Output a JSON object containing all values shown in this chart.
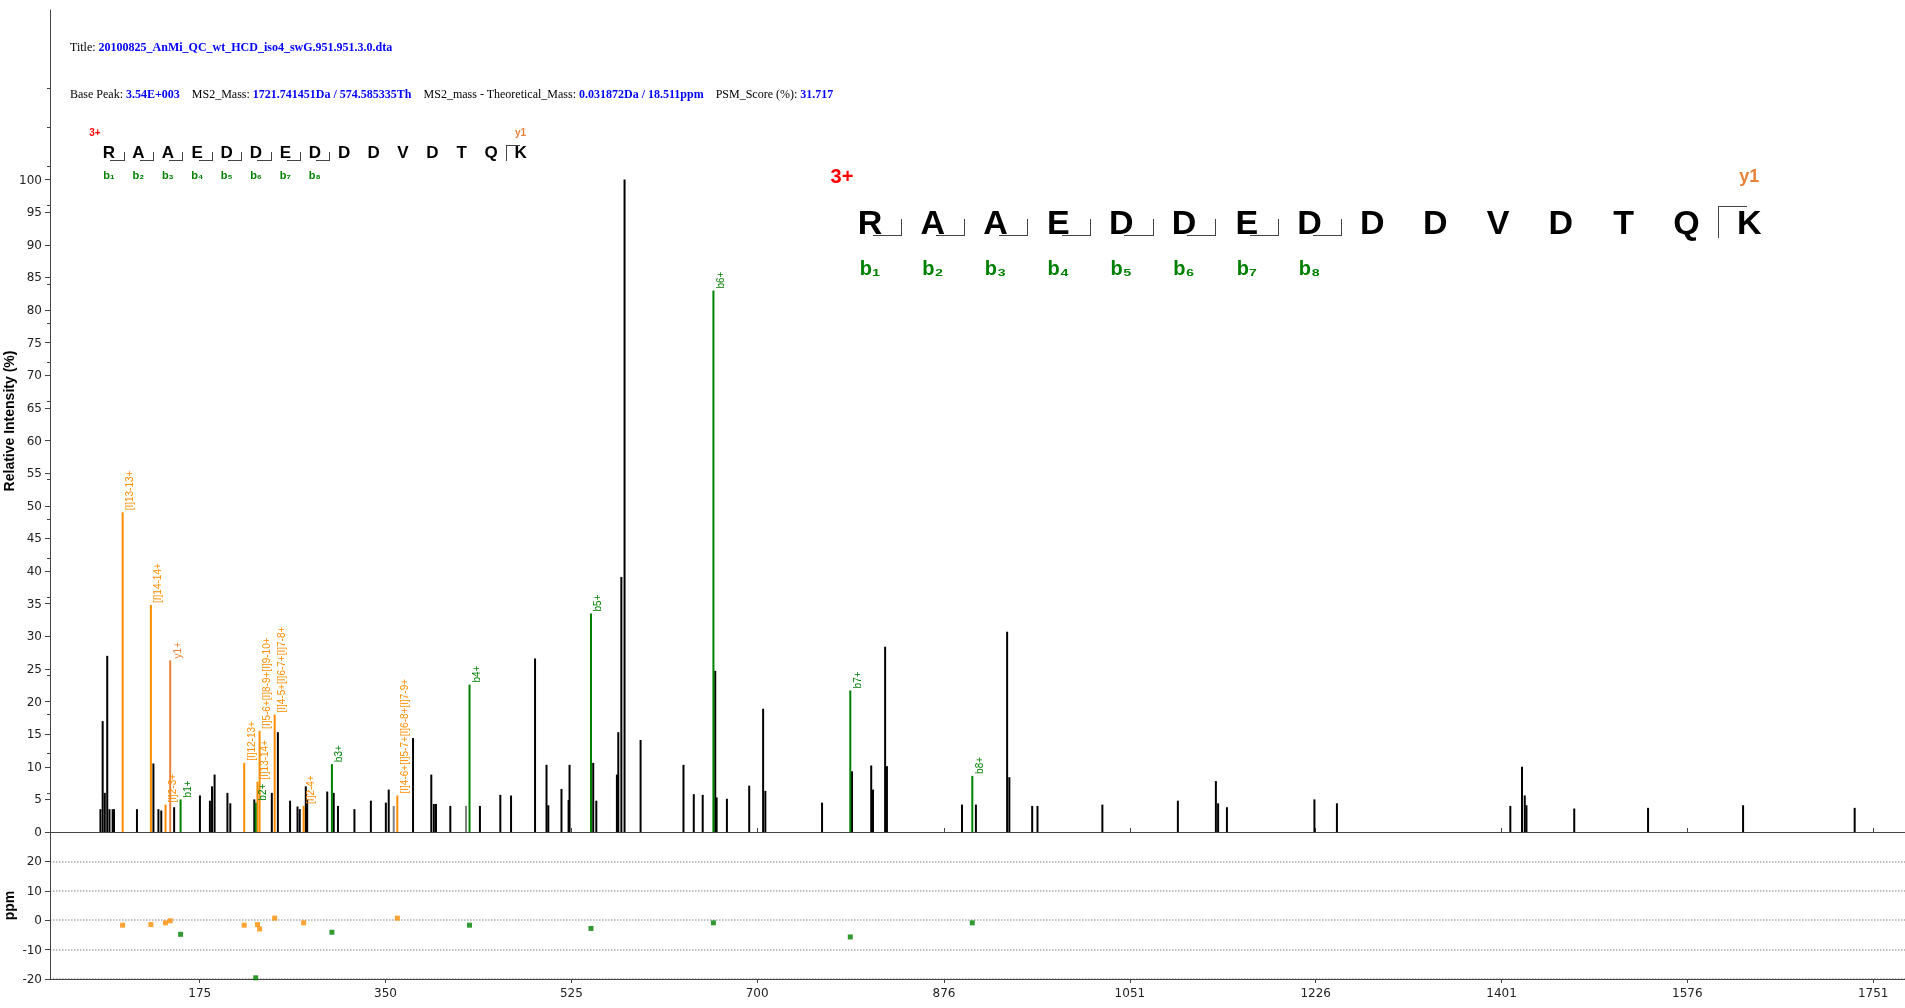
{
  "chart_data": [
    {
      "type": "bar",
      "title": "Title: 20100825_AnMi_QC_wt_HCD_iso4_swG.951.951.3.0.dta",
      "subtitle": "Base Peak: 3.54E+003    MS2_Mass: 1721.741451Da / 574.585335Th    MS2_mass - Theoretical_Mass: 0.031872Da / 18.511ppm    PSM_Score (%): 31.717",
      "ylabel": "Relative Intensity (%)",
      "annotations": [
        "3+",
        "R",
        "A",
        "A",
        "E",
        "D",
        "D",
        "E",
        "D",
        "D",
        "D",
        "V",
        "D",
        "T",
        "Q",
        "K",
        "b₁",
        "b₂",
        "b₃",
        "b₄",
        "b₅",
        "b₆",
        "b₇",
        "b₈",
        "y1"
      ],
      "xlim": [
        34,
        1781
      ],
      "ylim": [
        0,
        126
      ],
      "yticks": [
        0,
        5,
        10,
        15,
        20,
        25,
        30,
        35,
        40,
        45,
        50,
        55,
        60,
        65,
        70,
        75,
        80,
        85,
        90,
        95,
        100
      ],
      "xticks": [
        175,
        350,
        525,
        700,
        876,
        1051,
        1226,
        1401,
        1576,
        1751
      ],
      "tick_labels": "y",
      "grid": false,
      "series": [
        {
          "color": "#000000",
          "x": [
            81.5,
            83.6,
            85.6,
            87.9,
            90.0,
            93.0,
            94.3,
            115.9,
            131.4,
            136.1,
            138.8,
            150.9,
            175.2,
            184.6,
            186.6,
            189.0,
            201.1,
            203.8,
            226.4,
            242.9,
            248.6,
            260.1,
            267.1,
            269.2,
            274.9,
            276.2,
            295.1,
            301.2,
            305.2,
            320.7,
            336.2,
            350.3,
            353.0,
            375.9,
            393.1,
            395.5,
            397.5,
            411.0,
            438.9,
            458.1,
            468.2,
            490.8,
            501.6,
            503.3,
            515.7,
            522.4,
            523.3,
            545.6,
            548.5,
            567.9,
            569.2,
            572.1,
            575.1,
            590.2,
            630.6,
            640.3,
            648.7,
            660.5,
            661.8,
            671.5,
            692.5,
            705.6,
            707.7,
            761.1,
            789.3,
            807.4,
            809.1,
            820.5,
            822.2,
            892.9,
            906.0,
            935.4,
            937.5,
            959.0,
            964.0,
            1025.1,
            1096.2,
            1132.0,
            1134.1,
            1142.4,
            1224.8,
            1246.0,
            1409.3,
            1420.3,
            1422.9,
            1424.5,
            1469.5,
            1539.0,
            1628.5,
            1733.6
          ],
          "values": [
            3.5,
            17,
            6,
            27,
            3.5,
            3.5,
            3.5,
            3.5,
            10.5,
            3.5,
            3.3,
            3.8,
            5.6,
            4.8,
            7,
            8.8,
            6,
            4.4,
            5,
            6,
            15.3,
            4.8,
            3.9,
            3.5,
            7,
            5,
            6.2,
            6,
            4,
            3.5,
            4.8,
            4.5,
            6.5,
            14.4,
            8.8,
            4.3,
            4.3,
            4,
            4,
            5.7,
            5.6,
            26.6,
            10.3,
            4.1,
            6.6,
            4.9,
            10.3,
            10.6,
            4.8,
            8.8,
            15.3,
            39.1,
            100,
            14.1,
            10.3,
            5.8,
            5.7,
            24.7,
            5.3,
            5.1,
            7.1,
            18.9,
            6.3,
            4.5,
            9.3,
            10.2,
            6.5,
            28.4,
            10.1,
            4.2,
            4.2,
            30.7,
            8.4,
            4.0,
            4.0,
            4.2,
            4.8,
            7.8,
            4.4,
            3.8,
            5.0,
            4.4,
            4.0,
            10.0,
            5.6,
            4.1,
            3.6,
            3.7,
            4.1,
            3.7
          ]
        },
        {
          "color": "#808080",
          "x": [
            357.7,
            425.8
          ],
          "values": [
            4,
            4
          ]
        },
        {
          "color": "#ff8c00",
          "x": [
            102.4,
            129.0,
            142.8,
            216.9,
            229.4,
            231.4,
            245.6,
            272.9,
            361.1
          ],
          "values": [
            49,
            34.8,
            4.2,
            10.6,
            7.7,
            15.5,
            18,
            4,
            5.6
          ],
          "value_labels": [
            "[I]13-13+",
            "[I]14-14+",
            "[I]2-3+",
            "[I]12-13+",
            "[I]13-14+",
            "[I]5-6+[I]8-9+[I]9-10+",
            "[I]4-5+[I]6-7+[I]7-8+",
            "[I]2-4+",
            "[I]4-6+[I]5-7+[I]6-8+[I]7-9+"
          ]
        },
        {
          "color": "#e8823a",
          "x": [
            147.2
          ],
          "values": [
            26.3
          ],
          "value_labels": [
            "y1+"
          ]
        },
        {
          "color": "#008000",
          "x": [
            157.0,
            227.7,
            299.5,
            429.1,
            543.5,
            658.8,
            787.7,
            902.6
          ],
          "values": [
            5,
            4.5,
            10.4,
            22.6,
            33.5,
            83,
            21.7,
            8.6
          ],
          "value_labels": [
            "b1+",
            "b2+",
            "b3+",
            "b4+",
            "b5+",
            "b6+",
            "b7+",
            "b8+"
          ]
        }
      ]
    },
    {
      "type": "scatter",
      "ylabel": "ppm",
      "xlim": [
        34,
        1781
      ],
      "ylim": [
        -20,
        30
      ],
      "xticks": [
        175,
        350,
        525,
        700,
        876,
        1051,
        1226,
        1401,
        1576,
        1751
      ],
      "yticks": [
        -20,
        -10,
        0,
        10,
        20
      ],
      "grid": "y",
      "marker": "square",
      "series": [
        {
          "color": "#ff8c00",
          "x": [
            102.4,
            129.0,
            142.8,
            147.2,
            216.9,
            229.4,
            231.4,
            245.6,
            272.9,
            361.1
          ],
          "values": [
            -1.7,
            -1.5,
            -0.9,
            -0.2,
            -1.7,
            -1.5,
            -3.0,
            0.7,
            -0.9,
            0.7
          ]
        },
        {
          "color": "#008000",
          "x": [
            157.0,
            227.7,
            299.5,
            429.1,
            543.5,
            658.8,
            787.7,
            902.6
          ],
          "values": [
            -4.8,
            -19.6,
            -4.1,
            -1.7,
            -2.8,
            -0.9,
            -5.7,
            -0.9
          ]
        }
      ]
    }
  ]
}
